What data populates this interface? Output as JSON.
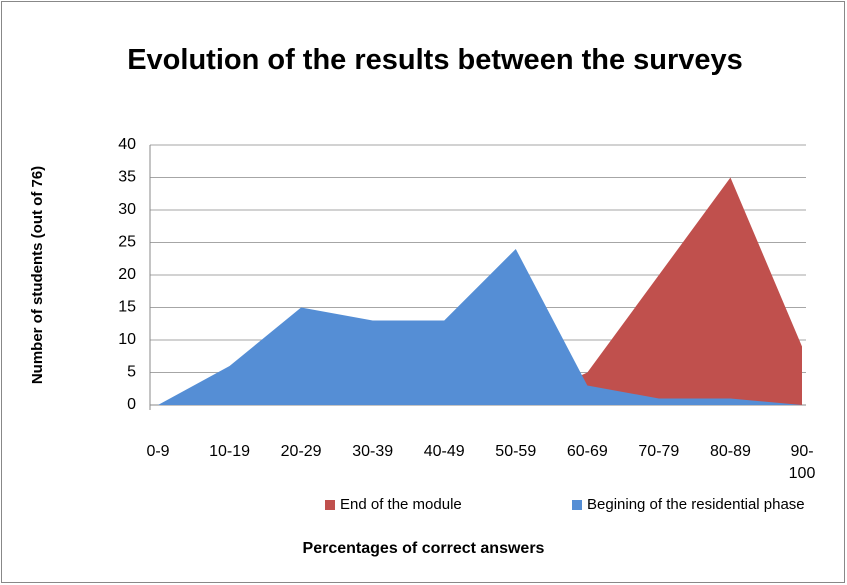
{
  "chart_data": {
    "type": "area",
    "title": "Evolution of the results between the surveys",
    "x_label": "Percentages of correct answers",
    "y_label": "Number of students (out of 76)",
    "categories": [
      "0-9",
      "10-19",
      "20-29",
      "30-39",
      "40-49",
      "50-59",
      "60-69",
      "70-79",
      "80-89",
      "90-100"
    ],
    "series": [
      {
        "name": "End of the module",
        "color": "#c0504d",
        "values": [
          0,
          0,
          0,
          0,
          0,
          0,
          5,
          20,
          35,
          9
        ]
      },
      {
        "name": "Begining of the residential phase",
        "color": "#558ed5",
        "values": [
          0,
          6,
          15,
          13,
          13,
          24,
          3,
          1,
          1,
          0
        ]
      }
    ],
    "ylim": [
      0,
      40
    ],
    "yticks": [
      0,
      5,
      10,
      15,
      20,
      25,
      30,
      35,
      40
    ],
    "grid": true,
    "legend": "bottom"
  }
}
